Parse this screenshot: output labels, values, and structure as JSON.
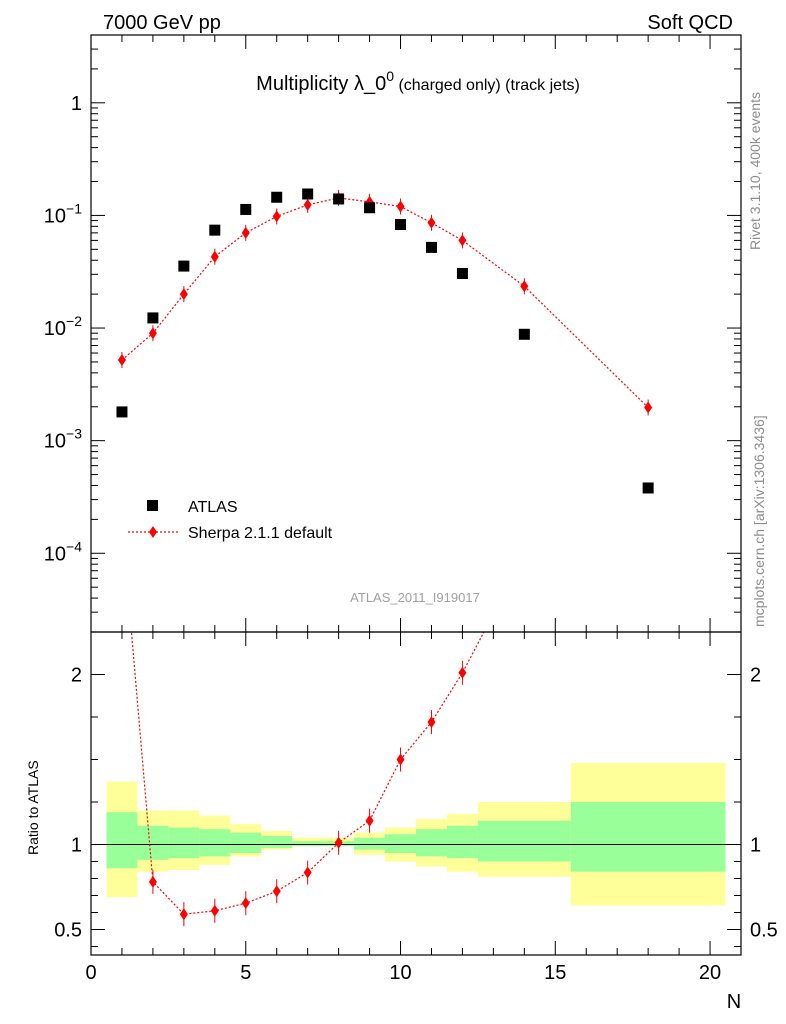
{
  "header": {
    "left": "7000 GeV pp",
    "right": "Soft QCD"
  },
  "side_labels": {
    "rivet": "Rivet 3.1.10,  400k events",
    "mcplots": "mcplots.cern.ch [arXiv:1306.3436]"
  },
  "chart_data": [
    {
      "type": "scatter",
      "title_main": "Multiplicity λ_0",
      "title_sup": "0",
      "title_tail": " (charged only) (track jets)",
      "analysis_id": "ATLAS_2011_I919017",
      "yscale": "log",
      "xlim": [
        0,
        21
      ],
      "ylim": [
        2e-05,
        4
      ],
      "yticks": [
        {
          "value": 0.0001,
          "base": "10",
          "exp": "−4"
        },
        {
          "value": 0.001,
          "base": "10",
          "exp": "−3"
        },
        {
          "value": 0.01,
          "base": "10",
          "exp": "−2"
        },
        {
          "value": 0.1,
          "base": "10",
          "exp": "−1"
        },
        {
          "value": 1,
          "base": "1",
          "exp": ""
        }
      ],
      "legend": {
        "position": "bottom-left"
      },
      "series": [
        {
          "name": "ATLAS",
          "color": "#000000",
          "marker": "square",
          "x": [
            1,
            2,
            3,
            4,
            5,
            6,
            7,
            8,
            9,
            10,
            11,
            12,
            14,
            18
          ],
          "y": [
            0.0018,
            0.0123,
            0.0355,
            0.074,
            0.113,
            0.145,
            0.155,
            0.14,
            0.117,
            0.083,
            0.052,
            0.0305,
            0.0088,
            0.00038
          ]
        },
        {
          "name": "Sherpa 2.1.1 default",
          "color": "#ff0000",
          "marker": "diamond",
          "line": "dotted",
          "x": [
            1,
            2,
            3,
            4,
            5,
            6,
            7,
            8,
            9,
            10,
            11,
            12,
            14,
            18
          ],
          "y": [
            0.0052,
            0.009,
            0.02,
            0.043,
            0.07,
            0.098,
            0.124,
            0.143,
            0.132,
            0.12,
            0.086,
            0.06,
            0.0235,
            0.00197
          ]
        }
      ]
    },
    {
      "type": "scatter",
      "ylabel": "Ratio to ATLAS",
      "xlabel": "N",
      "xlim": [
        0,
        21
      ],
      "ylim": [
        0.35,
        2.25
      ],
      "xticks": [
        0,
        5,
        10,
        15,
        20
      ],
      "yticks": [
        0.5,
        1,
        2
      ],
      "reference_line": 1,
      "uncertainty_bands": [
        {
          "x0": 0.5,
          "x1": 1.5,
          "yellow": [
            0.69,
            1.37
          ],
          "green": [
            0.86,
            1.19
          ]
        },
        {
          "x0": 1.5,
          "x1": 2.5,
          "yellow": [
            0.84,
            1.2
          ],
          "green": [
            0.91,
            1.11
          ]
        },
        {
          "x0": 2.5,
          "x1": 3.5,
          "yellow": [
            0.85,
            1.2
          ],
          "green": [
            0.92,
            1.1
          ]
        },
        {
          "x0": 3.5,
          "x1": 4.5,
          "yellow": [
            0.88,
            1.17
          ],
          "green": [
            0.93,
            1.09
          ]
        },
        {
          "x0": 4.5,
          "x1": 5.5,
          "yellow": [
            0.93,
            1.12
          ],
          "green": [
            0.95,
            1.07
          ]
        },
        {
          "x0": 5.5,
          "x1": 6.5,
          "yellow": [
            0.97,
            1.08
          ],
          "green": [
            0.98,
            1.05
          ]
        },
        {
          "x0": 6.5,
          "x1": 7.5,
          "yellow": [
            0.99,
            1.04
          ],
          "green": [
            0.99,
            1.02
          ]
        },
        {
          "x0": 7.5,
          "x1": 8.5,
          "yellow": [
            0.99,
            1.04
          ],
          "green": [
            0.99,
            1.02
          ]
        },
        {
          "x0": 8.5,
          "x1": 9.5,
          "yellow": [
            0.94,
            1.07
          ],
          "green": [
            0.97,
            1.04
          ]
        },
        {
          "x0": 9.5,
          "x1": 10.5,
          "yellow": [
            0.9,
            1.1
          ],
          "green": [
            0.95,
            1.06
          ]
        },
        {
          "x0": 10.5,
          "x1": 11.5,
          "yellow": [
            0.87,
            1.15
          ],
          "green": [
            0.93,
            1.09
          ]
        },
        {
          "x0": 11.5,
          "x1": 12.5,
          "yellow": [
            0.84,
            1.18
          ],
          "green": [
            0.92,
            1.11
          ]
        },
        {
          "x0": 12.5,
          "x1": 15.5,
          "yellow": [
            0.81,
            1.25
          ],
          "green": [
            0.9,
            1.14
          ]
        },
        {
          "x0": 15.5,
          "x1": 20.5,
          "yellow": [
            0.64,
            1.48
          ],
          "green": [
            0.84,
            1.25
          ]
        }
      ],
      "series": [
        {
          "name": "Sherpa 2.1.1 default",
          "color": "#ff0000",
          "marker": "diamond",
          "line": "dotted",
          "x": [
            2,
            3,
            4,
            5,
            6,
            7,
            8,
            9,
            10,
            11,
            12
          ],
          "y": [
            0.78,
            0.59,
            0.61,
            0.655,
            0.725,
            0.835,
            1.01,
            1.14,
            1.5,
            1.72,
            2.01
          ],
          "line_x": [
            1,
            2,
            3,
            4,
            5,
            6,
            7,
            8,
            9,
            10,
            11,
            12,
            14
          ],
          "line_y": [
            2.9,
            0.78,
            0.59,
            0.61,
            0.655,
            0.725,
            0.835,
            1.01,
            1.14,
            1.5,
            1.72,
            2.01,
            2.7
          ]
        }
      ]
    }
  ]
}
